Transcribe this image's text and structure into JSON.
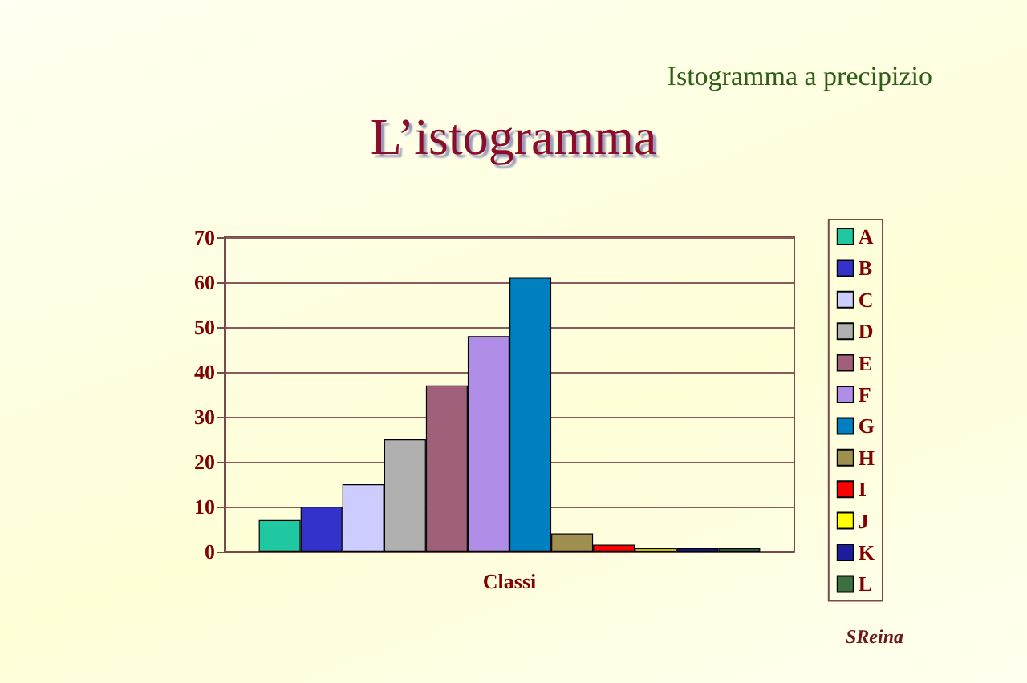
{
  "chart_data": {
    "type": "bar",
    "title": "L’istogramma",
    "subtitle": "Istogramma a precipizio",
    "xlabel": "Classi",
    "categories": [
      null
    ],
    "series": [
      {
        "name": "A",
        "color": "#1fc8a0",
        "values": [
          7
        ]
      },
      {
        "name": "B",
        "color": "#3333cc",
        "values": [
          10
        ]
      },
      {
        "name": "C",
        "color": "#ccccff",
        "values": [
          15
        ]
      },
      {
        "name": "D",
        "color": "#b0b0b0",
        "values": [
          25
        ]
      },
      {
        "name": "E",
        "color": "#a0607a",
        "values": [
          37
        ]
      },
      {
        "name": "F",
        "color": "#b08ee8",
        "values": [
          48
        ]
      },
      {
        "name": "G",
        "color": "#0080c0",
        "values": [
          61
        ]
      },
      {
        "name": "H",
        "color": "#a09050",
        "values": [
          4
        ]
      },
      {
        "name": "I",
        "color": "#ff0000",
        "values": [
          1.5
        ]
      },
      {
        "name": "J",
        "color": "#ffff00",
        "values": [
          0.7
        ]
      },
      {
        "name": "K",
        "color": "#1c1c9c",
        "values": [
          0
        ]
      },
      {
        "name": "L",
        "color": "#3c7040",
        "values": [
          0
        ]
      }
    ],
    "ylim": [
      0,
      70
    ],
    "yticks": [
      0,
      10,
      20,
      30,
      40,
      50,
      60,
      70
    ],
    "grid": "y",
    "legend": "right",
    "annotations": [
      "SReina"
    ]
  }
}
